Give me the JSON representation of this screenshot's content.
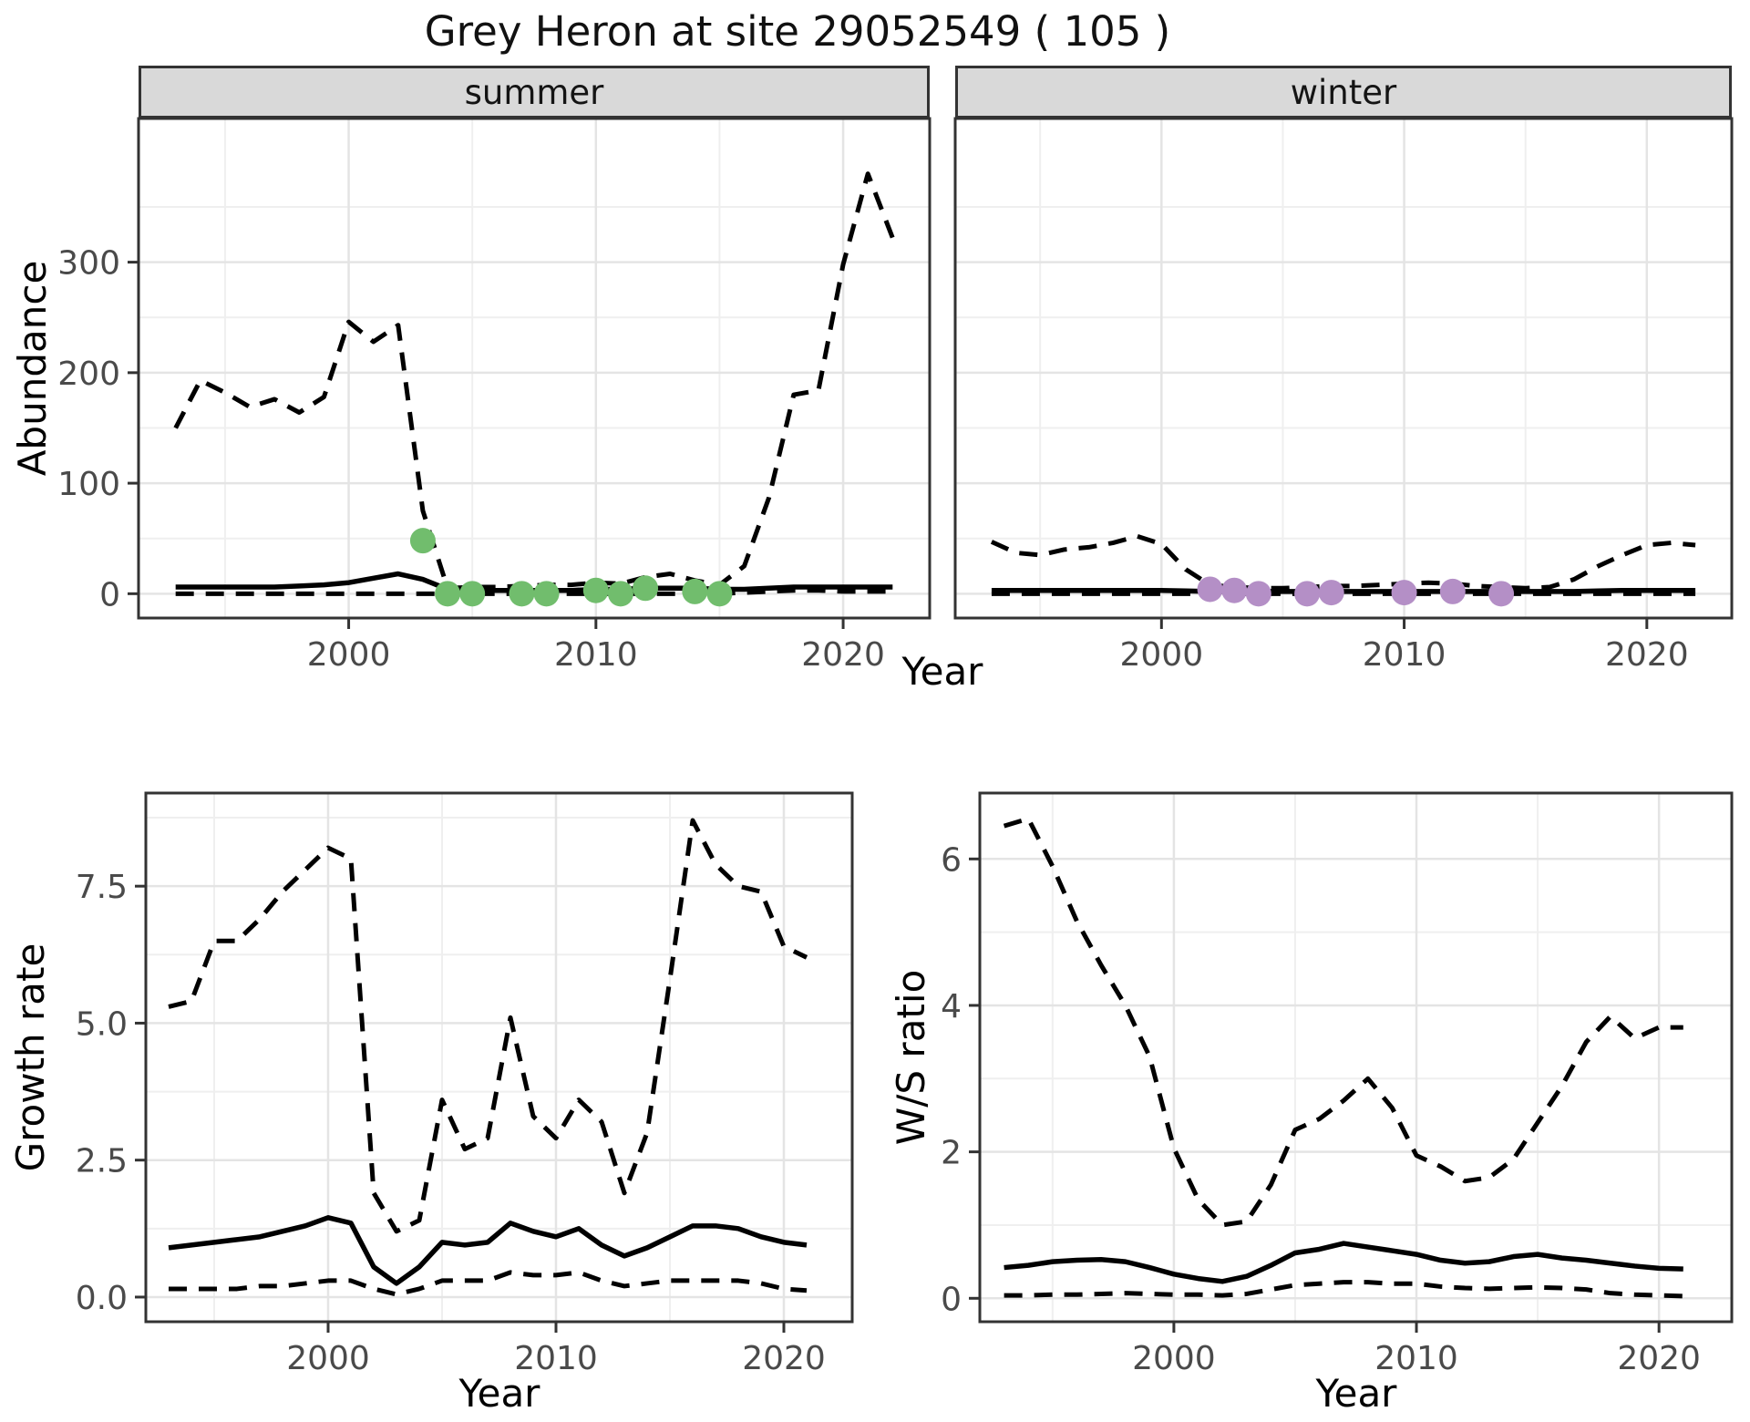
{
  "title": "Grey Heron at site 29052549 ( 105 )",
  "axes": {
    "abundance_label": "Abundance",
    "growth_label": "Growth rate",
    "ws_label": "W/S ratio",
    "year_label": "Year"
  },
  "facets": [
    {
      "label": "summer"
    },
    {
      "label": "winter"
    }
  ],
  "colors": {
    "median_line": "#000000",
    "ci_line": "#000000",
    "summer_points": "#71bd6d",
    "winter_points": "#b48fc6",
    "grid_major": "#e4e4e4",
    "grid_minor": "#efefef",
    "panel_border": "#333333",
    "strip_bg": "#d9d9d9",
    "axis_text": "#4a4a4a",
    "title_text": "#111111"
  },
  "chart_data": [
    {
      "id": "abundance-summer",
      "type": "line",
      "facet": "summer",
      "xlabel": "Year",
      "ylabel": "Abundance",
      "grid": true,
      "legend": "none",
      "xlim": [
        1991.5,
        2023.5
      ],
      "ylim": [
        -22,
        430
      ],
      "xticks": {
        "values": [
          2000,
          2010,
          2020
        ],
        "labels": [
          "2000",
          "2010",
          "2020"
        ]
      },
      "yticks": {
        "values": [
          0,
          100,
          200,
          300
        ],
        "labels": [
          "0",
          "100",
          "200",
          "300"
        ]
      },
      "x": [
        1993,
        1994,
        1995,
        1996,
        1997,
        1998,
        1999,
        2000,
        2001,
        2002,
        2003,
        2004,
        2005,
        2006,
        2007,
        2008,
        2009,
        2010,
        2011,
        2012,
        2013,
        2014,
        2015,
        2016,
        2017,
        2018,
        2019,
        2020,
        2021,
        2022
      ],
      "series": [
        {
          "name": "upper-ci",
          "linetype": "dashed",
          "values": [
            150,
            193,
            182,
            169,
            176,
            164,
            178,
            246,
            228,
            243,
            75,
            5,
            6,
            6,
            7,
            8,
            8,
            10,
            9,
            15,
            18,
            12,
            8,
            25,
            87,
            180,
            184,
            298,
            380,
            322
          ]
        },
        {
          "name": "lower-ci",
          "linetype": "dashed",
          "values": [
            0,
            0,
            0,
            0,
            0,
            0,
            0,
            0,
            0,
            0,
            0,
            0,
            0,
            0,
            0,
            0,
            0,
            0,
            0,
            0,
            0,
            0,
            0,
            1,
            2,
            3,
            3,
            2,
            2,
            2
          ]
        },
        {
          "name": "median",
          "linetype": "solid",
          "values": [
            6,
            6,
            6,
            6,
            6,
            7,
            8,
            10,
            14,
            18,
            13,
            4,
            3,
            3,
            3,
            3,
            3,
            4,
            4,
            5,
            5,
            5,
            4,
            4,
            5,
            6,
            6,
            6,
            6,
            6
          ]
        }
      ],
      "points": {
        "name": "observed-count-summer",
        "color_key": "summer_points",
        "x": [
          2003,
          2004,
          2005,
          2007,
          2008,
          2010,
          2011,
          2012,
          2014,
          2015
        ],
        "y": [
          48,
          0,
          0,
          0,
          0,
          3,
          0,
          5,
          2,
          0
        ]
      }
    },
    {
      "id": "abundance-winter",
      "type": "line",
      "facet": "winter",
      "xlabel": "Year",
      "ylabel": "Abundance",
      "grid": true,
      "legend": "none",
      "xlim": [
        1991.5,
        2023.5
      ],
      "ylim": [
        -22,
        430
      ],
      "xticks": {
        "values": [
          2000,
          2010,
          2020
        ],
        "labels": [
          "2000",
          "2010",
          "2020"
        ]
      },
      "yticks": {
        "values": [
          0,
          100,
          200,
          300
        ],
        "labels": [
          "0",
          "100",
          "200",
          "300"
        ]
      },
      "x": [
        1993,
        1994,
        1995,
        1996,
        1997,
        1998,
        1999,
        2000,
        2001,
        2002,
        2003,
        2004,
        2005,
        2006,
        2007,
        2008,
        2009,
        2010,
        2011,
        2012,
        2013,
        2014,
        2015,
        2016,
        2017,
        2018,
        2019,
        2020,
        2021,
        2022
      ],
      "series": [
        {
          "name": "upper-ci",
          "linetype": "dashed",
          "values": [
            47,
            37,
            35,
            40,
            42,
            46,
            52,
            45,
            22,
            8,
            6,
            5,
            5,
            6,
            7,
            7,
            8,
            9,
            10,
            9,
            7,
            6,
            5,
            6,
            13,
            25,
            35,
            44,
            46,
            44
          ]
        },
        {
          "name": "lower-ci",
          "linetype": "dashed",
          "values": [
            0,
            0,
            0,
            0,
            0,
            0,
            0,
            0,
            0,
            0,
            0,
            0,
            0,
            0,
            0,
            0,
            0,
            0,
            0,
            0,
            0,
            0,
            0,
            0,
            0,
            0,
            0,
            0,
            0,
            0
          ]
        },
        {
          "name": "median",
          "linetype": "solid",
          "values": [
            3,
            3,
            3,
            3,
            3,
            3,
            3,
            3,
            2.5,
            2,
            2,
            2,
            2,
            2,
            2,
            2,
            2,
            2,
            2,
            2,
            2,
            2,
            2,
            2,
            2,
            2.5,
            3,
            3,
            3,
            3
          ]
        }
      ],
      "points": {
        "name": "observed-count-winter",
        "color_key": "winter_points",
        "x": [
          2002,
          2003,
          2004,
          2006,
          2007,
          2010,
          2012,
          2014
        ],
        "y": [
          4,
          3,
          0,
          0,
          1,
          1,
          2,
          0
        ]
      }
    },
    {
      "id": "growth-rate",
      "type": "line",
      "facet": null,
      "xlabel": "Year",
      "ylabel": "Growth rate",
      "grid": true,
      "legend": "none",
      "xlim": [
        1992,
        2023
      ],
      "ylim": [
        -0.45,
        9.2
      ],
      "xticks": {
        "values": [
          2000,
          2010,
          2020
        ],
        "labels": [
          "2000",
          "2010",
          "2020"
        ]
      },
      "yticks": {
        "values": [
          0,
          2.5,
          5,
          7.5
        ],
        "labels": [
          "0.0",
          "2.5",
          "5.0",
          "7.5"
        ]
      },
      "x": [
        1993,
        1994,
        1995,
        1996,
        1997,
        1998,
        1999,
        2000,
        2001,
        2002,
        2003,
        2004,
        2005,
        2006,
        2007,
        2008,
        2009,
        2010,
        2011,
        2012,
        2013,
        2014,
        2015,
        2016,
        2017,
        2018,
        2019,
        2020,
        2021
      ],
      "series": [
        {
          "name": "upper-ci",
          "linetype": "dashed",
          "values": [
            5.3,
            5.4,
            6.5,
            6.5,
            6.9,
            7.4,
            7.8,
            8.2,
            8.0,
            1.9,
            1.2,
            1.4,
            3.6,
            2.7,
            2.9,
            5.1,
            3.3,
            2.9,
            3.6,
            3.2,
            1.9,
            3.0,
            5.8,
            8.7,
            7.9,
            7.5,
            7.4,
            6.4,
            6.2
          ]
        },
        {
          "name": "lower-ci",
          "linetype": "dashed",
          "values": [
            0.15,
            0.15,
            0.15,
            0.15,
            0.2,
            0.2,
            0.25,
            0.3,
            0.3,
            0.15,
            0.05,
            0.15,
            0.3,
            0.3,
            0.3,
            0.45,
            0.4,
            0.4,
            0.45,
            0.3,
            0.2,
            0.25,
            0.3,
            0.3,
            0.3,
            0.3,
            0.25,
            0.15,
            0.12
          ]
        },
        {
          "name": "median",
          "linetype": "solid",
          "values": [
            0.9,
            0.95,
            1.0,
            1.05,
            1.1,
            1.2,
            1.3,
            1.45,
            1.35,
            0.55,
            0.25,
            0.55,
            1.0,
            0.95,
            1.0,
            1.35,
            1.2,
            1.1,
            1.25,
            0.95,
            0.75,
            0.9,
            1.1,
            1.3,
            1.3,
            1.25,
            1.1,
            1.0,
            0.95
          ]
        }
      ],
      "points": null
    },
    {
      "id": "ws-ratio",
      "type": "line",
      "facet": null,
      "xlabel": "Year",
      "ylabel": "W/S ratio",
      "grid": true,
      "legend": "none",
      "xlim": [
        1992,
        2023
      ],
      "ylim": [
        -0.32,
        6.9
      ],
      "xticks": {
        "values": [
          2000,
          2010,
          2020
        ],
        "labels": [
          "2000",
          "2010",
          "2020"
        ]
      },
      "yticks": {
        "values": [
          0,
          2,
          4,
          6
        ],
        "labels": [
          "0",
          "2",
          "4",
          "6"
        ]
      },
      "x": [
        1993,
        1994,
        1995,
        1996,
        1997,
        1998,
        1999,
        2000,
        2001,
        2002,
        2003,
        2004,
        2005,
        2006,
        2007,
        2008,
        2009,
        2010,
        2011,
        2012,
        2013,
        2014,
        2015,
        2016,
        2017,
        2018,
        2019,
        2020,
        2021
      ],
      "series": [
        {
          "name": "upper-ci",
          "linetype": "dashed",
          "values": [
            6.45,
            6.55,
            5.9,
            5.15,
            4.55,
            4.0,
            3.3,
            2.05,
            1.35,
            1.0,
            1.05,
            1.55,
            2.3,
            2.45,
            2.7,
            3.0,
            2.6,
            1.95,
            1.8,
            1.6,
            1.65,
            1.9,
            2.4,
            2.9,
            3.5,
            3.85,
            3.55,
            3.7,
            3.7
          ]
        },
        {
          "name": "lower-ci",
          "linetype": "dashed",
          "values": [
            0.04,
            0.04,
            0.05,
            0.05,
            0.06,
            0.07,
            0.06,
            0.05,
            0.05,
            0.04,
            0.06,
            0.12,
            0.18,
            0.2,
            0.22,
            0.22,
            0.2,
            0.2,
            0.16,
            0.14,
            0.13,
            0.14,
            0.15,
            0.14,
            0.12,
            0.07,
            0.05,
            0.04,
            0.03
          ]
        },
        {
          "name": "median",
          "linetype": "solid",
          "values": [
            0.42,
            0.45,
            0.5,
            0.52,
            0.53,
            0.5,
            0.42,
            0.33,
            0.27,
            0.23,
            0.3,
            0.45,
            0.62,
            0.67,
            0.75,
            0.7,
            0.65,
            0.6,
            0.52,
            0.48,
            0.5,
            0.57,
            0.6,
            0.55,
            0.52,
            0.48,
            0.44,
            0.41,
            0.4
          ]
        }
      ],
      "points": null
    }
  ]
}
